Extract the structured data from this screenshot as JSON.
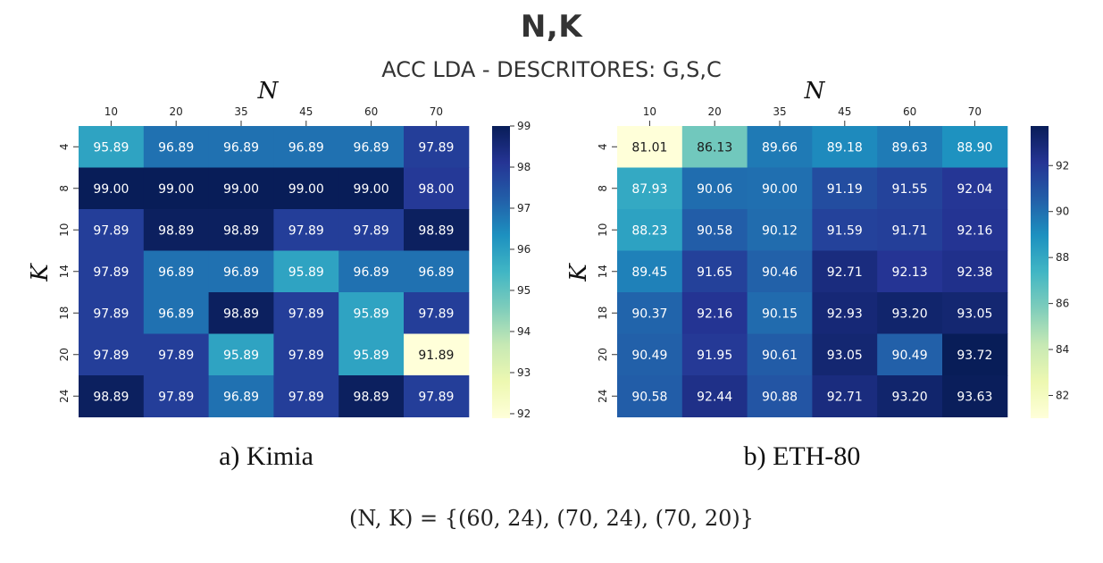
{
  "page": {
    "title": "N,K",
    "subtitle": "ACC LDA - DESCRITORES: G,S,C",
    "formula": "(N, K) = {(60, 24), (70, 24), (70, 20)}"
  },
  "chart_data": [
    {
      "type": "heatmap",
      "caption": "a) Kimia",
      "xlabel": "N",
      "ylabel": "K",
      "x_categories": [
        "10",
        "20",
        "35",
        "45",
        "60",
        "70"
      ],
      "y_categories": [
        "4",
        "8",
        "10",
        "14",
        "18",
        "20",
        "24"
      ],
      "values": [
        [
          95.89,
          96.89,
          96.89,
          96.89,
          96.89,
          97.89
        ],
        [
          99.0,
          99.0,
          99.0,
          99.0,
          99.0,
          98.0
        ],
        [
          97.89,
          98.89,
          98.89,
          97.89,
          97.89,
          98.89
        ],
        [
          97.89,
          96.89,
          96.89,
          95.89,
          96.89,
          96.89
        ],
        [
          97.89,
          96.89,
          98.89,
          97.89,
          95.89,
          97.89
        ],
        [
          97.89,
          97.89,
          95.89,
          97.89,
          95.89,
          91.89
        ],
        [
          98.89,
          97.89,
          96.89,
          97.89,
          98.89,
          97.89
        ]
      ],
      "value_labels": [
        [
          "95.89",
          "96.89",
          "96.89",
          "96.89",
          "96.89",
          "97.89"
        ],
        [
          "99.00",
          "99.00",
          "99.00",
          "99.00",
          "99.00",
          "98.00"
        ],
        [
          "97.89",
          "98.89",
          "98.89",
          "97.89",
          "97.89",
          "98.89"
        ],
        [
          "97.89",
          "96.89",
          "96.89",
          "95.89",
          "96.89",
          "96.89"
        ],
        [
          "97.89",
          "96.89",
          "98.89",
          "97.89",
          "95.89",
          "97.89"
        ],
        [
          "97.89",
          "97.89",
          "95.89",
          "97.89",
          "95.89",
          "91.89"
        ],
        [
          "98.89",
          "97.89",
          "96.89",
          "97.89",
          "98.89",
          "97.89"
        ]
      ],
      "colorbar": {
        "min": 91.89,
        "max": 99.0,
        "ticks": [
          92,
          93,
          94,
          95,
          96,
          97,
          98,
          99
        ],
        "tick_labels": [
          "92",
          "93",
          "94",
          "95",
          "96",
          "97",
          "98",
          "99"
        ]
      },
      "colormap": "YlGnBu"
    },
    {
      "type": "heatmap",
      "caption": "b) ETH-80",
      "xlabel": "N",
      "ylabel": "K",
      "x_categories": [
        "10",
        "20",
        "35",
        "45",
        "60",
        "70"
      ],
      "y_categories": [
        "4",
        "8",
        "10",
        "14",
        "18",
        "20",
        "24"
      ],
      "values": [
        [
          81.01,
          86.13,
          89.66,
          89.18,
          89.63,
          88.9
        ],
        [
          87.93,
          90.06,
          90.0,
          91.19,
          91.55,
          92.04
        ],
        [
          88.23,
          90.58,
          90.12,
          91.59,
          91.71,
          92.16
        ],
        [
          89.45,
          91.65,
          90.46,
          92.71,
          92.13,
          92.38
        ],
        [
          90.37,
          92.16,
          90.15,
          92.93,
          93.2,
          93.05
        ],
        [
          90.49,
          91.95,
          90.61,
          93.05,
          90.49,
          93.72
        ],
        [
          90.58,
          92.44,
          90.88,
          92.71,
          93.2,
          93.63
        ]
      ],
      "value_labels": [
        [
          "81.01",
          "86.13",
          "89.66",
          "89.18",
          "89.63",
          "88.90"
        ],
        [
          "87.93",
          "90.06",
          "90.00",
          "91.19",
          "91.55",
          "92.04"
        ],
        [
          "88.23",
          "90.58",
          "90.12",
          "91.59",
          "91.71",
          "92.16"
        ],
        [
          "89.45",
          "91.65",
          "90.46",
          "92.71",
          "92.13",
          "92.38"
        ],
        [
          "90.37",
          "92.16",
          "90.15",
          "92.93",
          "93.20",
          "93.05"
        ],
        [
          "90.49",
          "91.95",
          "90.61",
          "93.05",
          "90.49",
          "93.72"
        ],
        [
          "90.58",
          "92.44",
          "90.88",
          "92.71",
          "93.20",
          "93.63"
        ]
      ],
      "colorbar": {
        "min": 81.01,
        "max": 93.72,
        "ticks": [
          82,
          84,
          86,
          88,
          90,
          92
        ],
        "tick_labels": [
          "82",
          "84",
          "86",
          "88",
          "90",
          "92"
        ]
      },
      "colormap": "YlGnBu"
    }
  ]
}
